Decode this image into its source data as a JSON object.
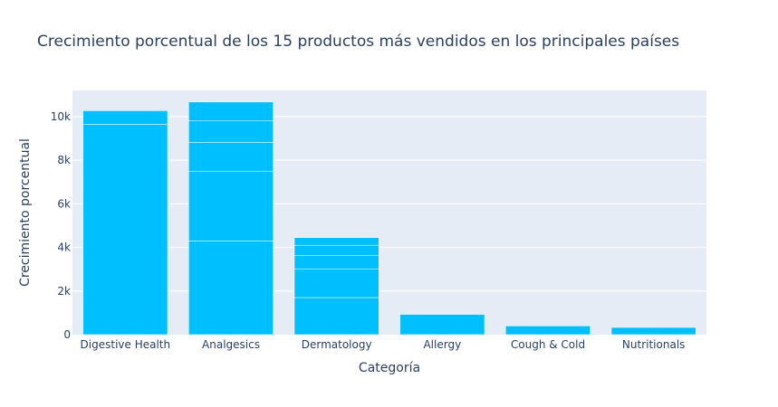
{
  "chart_data": {
    "type": "bar",
    "title": "Crecimiento porcentual de los 15 productos más vendidos en los principales países",
    "xlabel": "Categoría",
    "ylabel": "Crecimiento porcentual",
    "categories": [
      "Digestive Health",
      "Analgesics",
      "Dermatology",
      "Allergy",
      "Cough & Cold",
      "Nutritionals"
    ],
    "stacked_segments": [
      [
        9650,
        620
      ],
      [
        4300,
        3200,
        1320,
        980,
        870
      ],
      [
        1700,
        1320,
        600,
        480,
        350
      ],
      [
        930
      ],
      [
        400
      ],
      [
        330
      ]
    ],
    "totals": [
      10270,
      10670,
      4450,
      930,
      400,
      330
    ],
    "ylim": [
      0,
      11200
    ],
    "yticks": [
      0,
      2000,
      4000,
      6000,
      8000,
      10000
    ],
    "ytick_labels": [
      "0",
      "2k",
      "4k",
      "6k",
      "8k",
      "10k"
    ],
    "grid": true,
    "colors": {
      "bar": "#00bfff",
      "plot_bg": "#e5ecf6",
      "grid": "#ffffff",
      "text": "#2a3f5f"
    }
  }
}
